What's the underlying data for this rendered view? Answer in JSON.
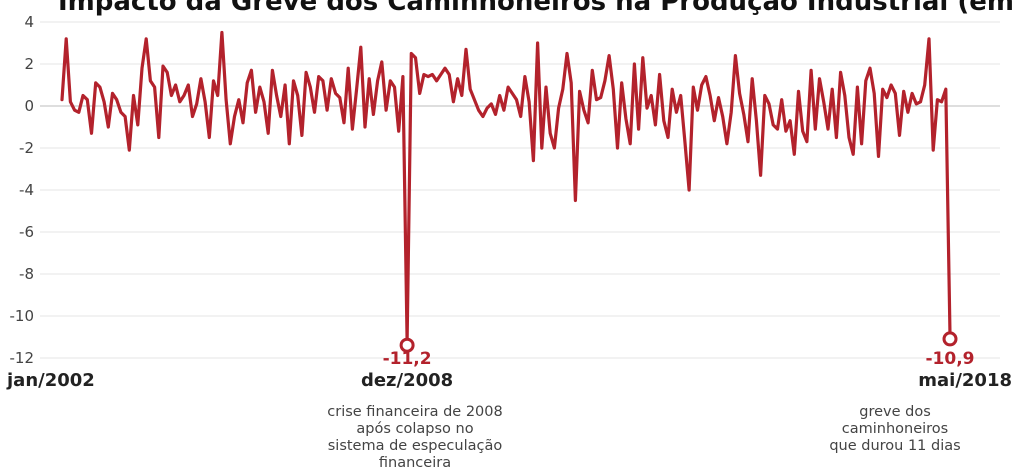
{
  "chart_data": {
    "type": "line",
    "title": "Impacto da Greve dos Caminhoneiros na Produção Industrial (em %)",
    "ylim": [
      -12,
      4
    ],
    "yticks": [
      4,
      2,
      0,
      -2,
      -4,
      -6,
      -8,
      -10,
      -12
    ],
    "grid": true,
    "x_range": [
      "jan/2002",
      "mai/2018"
    ],
    "xtick_labels": [
      "jan/2002",
      "dez/2008",
      "mai/2018"
    ],
    "color": "#b3222c",
    "series": [
      {
        "values": [
          0.3,
          3.2,
          0.2,
          -0.2,
          -0.3,
          0.5,
          0.3,
          -1.3,
          1.1,
          0.9,
          0.2,
          -1.0,
          0.6,
          0.3,
          -0.3,
          -0.5,
          -2.1,
          0.5,
          -0.9,
          1.8,
          3.2,
          1.2,
          0.9,
          -1.5,
          1.9,
          1.6,
          0.5,
          1.0,
          0.2,
          0.5,
          1.0,
          -0.5,
          0.1,
          1.3,
          0.2,
          -1.5,
          1.2,
          0.5,
          3.5,
          0.3,
          -1.8,
          -0.5,
          0.3,
          -0.8,
          1.1,
          1.7,
          -0.3,
          0.9,
          0.2,
          -1.3,
          1.7,
          0.5,
          -0.5,
          1.0,
          -1.8,
          1.2,
          0.5,
          -1.4,
          1.6,
          0.9,
          -0.3,
          1.4,
          1.2,
          -0.2,
          1.3,
          0.6,
          0.4,
          -0.8,
          1.8,
          -1.1,
          0.8,
          2.8,
          -1.0,
          1.3,
          -0.4,
          1.2,
          2.1,
          -0.2,
          1.2,
          0.9,
          -1.2,
          1.4,
          -11.2,
          2.5,
          2.3,
          0.6,
          1.5,
          1.4,
          1.5,
          1.2,
          1.5,
          1.8,
          1.5,
          0.2,
          1.3,
          0.5,
          2.7,
          0.8,
          0.3,
          -0.2,
          -0.5,
          -0.1,
          0.1,
          -0.4,
          0.5,
          -0.2,
          0.9,
          0.6,
          0.3,
          -0.5,
          1.4,
          0.2,
          -2.6,
          3.0,
          -2.0,
          0.9,
          -1.3,
          -2.0,
          -0.1,
          0.8,
          2.5,
          1.1,
          -4.5,
          0.7,
          -0.2,
          -0.8,
          1.7,
          0.3,
          0.4,
          1.2,
          2.4,
          0.8,
          -2.0,
          1.1,
          -0.6,
          -1.8,
          2.0,
          -1.1,
          2.3,
          -0.1,
          0.5,
          -0.9,
          1.5,
          -0.7,
          -1.5,
          0.8,
          -0.3,
          0.5,
          -1.7,
          -4.0,
          0.9,
          -0.2,
          1.0,
          1.4,
          0.5,
          -0.7,
          0.4,
          -0.5,
          -1.8,
          -0.3,
          2.4,
          0.6,
          -0.4,
          -1.7,
          1.3,
          -0.7,
          -3.3,
          0.5,
          0.1,
          -0.9,
          -1.1,
          0.3,
          -1.2,
          -0.7,
          -2.3,
          0.7,
          -1.2,
          -1.7,
          1.7,
          -1.1,
          1.3,
          0.2,
          -1.1,
          0.8,
          -1.5,
          1.6,
          0.5,
          -1.5,
          -2.3,
          0.9,
          -1.8,
          1.2,
          1.8,
          0.6,
          -2.4,
          0.8,
          0.4,
          1.0,
          0.6,
          -1.4,
          0.7,
          -0.3,
          0.6,
          0.1,
          0.2,
          1.0,
          3.2,
          -2.1,
          0.3,
          0.2,
          0.8,
          -10.9
        ]
      }
    ],
    "annotations": [
      {
        "x_label": "dez/2008",
        "value_label": "-11,2",
        "text_lines": [
          "crise financeira de 2008",
          "após colapso no",
          "sistema de especulação",
          "financeira"
        ]
      },
      {
        "x_label": "mai/2018",
        "value_label": "-10,9",
        "text_lines": [
          "greve dos",
          "caminhoneiros",
          "que durou 11 dias"
        ]
      }
    ]
  }
}
